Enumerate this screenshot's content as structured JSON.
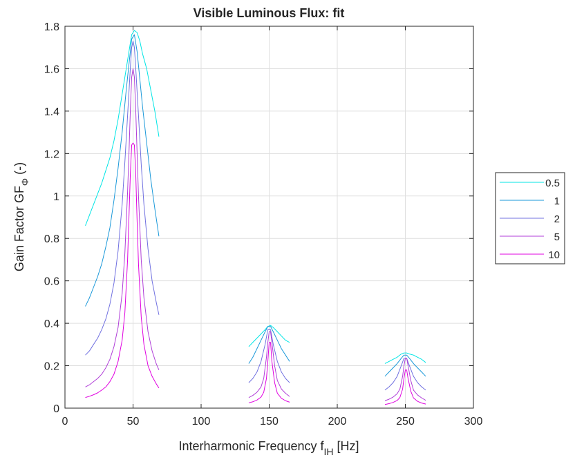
{
  "chart_data": {
    "type": "line",
    "title": "Visible Luminous Flux: fit",
    "xlabel": "Interharmonic Frequency f",
    "xlabel_sub": "IH",
    "xlabel_unit": " [Hz]",
    "ylabel": "Gain Factor GF",
    "ylabel_sub": "Φ",
    "ylabel_unit": " (-)",
    "xlim": [
      0,
      300
    ],
    "ylim": [
      0,
      1.8
    ],
    "xticks": [
      0,
      50,
      100,
      150,
      200,
      250,
      300
    ],
    "yticks": [
      0,
      0.2,
      0.4,
      0.6,
      0.8,
      1,
      1.2,
      1.4,
      1.6,
      1.8
    ],
    "xtick_labels": [
      "0",
      "50",
      "100",
      "150",
      "200",
      "250",
      "300"
    ],
    "ytick_labels": [
      "0",
      "0.2",
      "0.4",
      "0.6",
      "0.8",
      "1",
      "1.2",
      "1.4",
      "1.6",
      "1.8"
    ],
    "grid": true,
    "legend_position": "outside-right",
    "series": [
      {
        "name": "0.5",
        "color": "#00e5e5",
        "segments": [
          {
            "x": [
              15,
              18,
              21,
              24,
              27,
              30,
              33,
              36,
              39,
              42,
              45,
              47,
              49,
              51,
              53,
              55,
              57,
              60,
              63,
              66,
              69
            ],
            "y": [
              0.86,
              0.91,
              0.96,
              1.01,
              1.06,
              1.12,
              1.18,
              1.26,
              1.36,
              1.48,
              1.6,
              1.68,
              1.76,
              1.78,
              1.77,
              1.73,
              1.67,
              1.6,
              1.5,
              1.4,
              1.28
            ]
          },
          {
            "x": [
              135,
              138,
              141,
              144,
              147,
              149,
              151,
              153,
              156,
              159,
              162,
              165
            ],
            "y": [
              0.29,
              0.31,
              0.33,
              0.35,
              0.37,
              0.385,
              0.39,
              0.38,
              0.36,
              0.34,
              0.32,
              0.31
            ]
          },
          {
            "x": [
              235,
              238,
              241,
              244,
              247,
              249,
              251,
              253,
              256,
              259,
              262,
              265
            ],
            "y": [
              0.21,
              0.22,
              0.23,
              0.24,
              0.255,
              0.26,
              0.26,
              0.255,
              0.25,
              0.24,
              0.23,
              0.215
            ]
          }
        ]
      },
      {
        "name": "1",
        "color": "#1a98d9",
        "segments": [
          {
            "x": [
              15,
              18,
              21,
              24,
              27,
              30,
              33,
              36,
              39,
              42,
              45,
              47,
              49,
              51,
              53,
              55,
              57,
              60,
              63,
              66,
              69
            ],
            "y": [
              0.48,
              0.52,
              0.57,
              0.62,
              0.68,
              0.76,
              0.85,
              0.98,
              1.13,
              1.3,
              1.5,
              1.62,
              1.74,
              1.76,
              1.68,
              1.55,
              1.42,
              1.25,
              1.08,
              0.94,
              0.81
            ]
          },
          {
            "x": [
              135,
              138,
              141,
              144,
              147,
              149,
              151,
              153,
              156,
              159,
              162,
              165
            ],
            "y": [
              0.21,
              0.24,
              0.28,
              0.32,
              0.36,
              0.385,
              0.385,
              0.36,
              0.32,
              0.28,
              0.25,
              0.22
            ]
          },
          {
            "x": [
              235,
              238,
              241,
              244,
              247,
              249,
              251,
              253,
              256,
              259,
              262,
              265
            ],
            "y": [
              0.15,
              0.17,
              0.19,
              0.21,
              0.235,
              0.25,
              0.25,
              0.235,
              0.21,
              0.19,
              0.17,
              0.15
            ]
          }
        ]
      },
      {
        "name": "2",
        "color": "#7070e0",
        "segments": [
          {
            "x": [
              15,
              18,
              21,
              24,
              27,
              30,
              33,
              36,
              39,
              42,
              44,
              46,
              48,
              49,
              50,
              51,
              52,
              54,
              56,
              58,
              61,
              64,
              67,
              69
            ],
            "y": [
              0.25,
              0.27,
              0.3,
              0.33,
              0.37,
              0.42,
              0.49,
              0.59,
              0.74,
              0.96,
              1.16,
              1.38,
              1.6,
              1.7,
              1.73,
              1.7,
              1.6,
              1.38,
              1.15,
              0.96,
              0.75,
              0.6,
              0.5,
              0.44
            ]
          },
          {
            "x": [
              135,
              138,
              141,
              144,
              147,
              149,
              151,
              153,
              156,
              159,
              162,
              165
            ],
            "y": [
              0.12,
              0.14,
              0.17,
              0.22,
              0.3,
              0.37,
              0.37,
              0.3,
              0.22,
              0.17,
              0.14,
              0.12
            ]
          },
          {
            "x": [
              235,
              238,
              241,
              244,
              247,
              249,
              251,
              253,
              256,
              259,
              262,
              265
            ],
            "y": [
              0.085,
              0.1,
              0.12,
              0.15,
              0.2,
              0.235,
              0.235,
              0.2,
              0.15,
              0.12,
              0.1,
              0.085
            ]
          }
        ]
      },
      {
        "name": "5",
        "color": "#b03ed8",
        "segments": [
          {
            "x": [
              15,
              18,
              21,
              24,
              27,
              30,
              33,
              36,
              39,
              42,
              44,
              46,
              47,
              48,
              49,
              50,
              51,
              52,
              53,
              54,
              56,
              58,
              61,
              64,
              67,
              69
            ],
            "y": [
              0.1,
              0.11,
              0.125,
              0.14,
              0.16,
              0.19,
              0.23,
              0.29,
              0.38,
              0.54,
              0.73,
              1.02,
              1.2,
              1.4,
              1.56,
              1.6,
              1.56,
              1.4,
              1.2,
              1.0,
              0.7,
              0.52,
              0.36,
              0.27,
              0.21,
              0.18
            ]
          },
          {
            "x": [
              135,
              138,
              141,
              144,
              146,
              148,
              149,
              150,
              151,
              152,
              154,
              156,
              159,
              162,
              165
            ],
            "y": [
              0.05,
              0.06,
              0.075,
              0.1,
              0.14,
              0.24,
              0.31,
              0.36,
              0.36,
              0.31,
              0.2,
              0.13,
              0.09,
              0.07,
              0.055
            ]
          },
          {
            "x": [
              235,
              238,
              241,
              244,
              246,
              248,
              249,
              250,
              251,
              252,
              254,
              256,
              259,
              262,
              265
            ],
            "y": [
              0.035,
              0.042,
              0.052,
              0.068,
              0.09,
              0.15,
              0.2,
              0.235,
              0.235,
              0.2,
              0.13,
              0.085,
              0.062,
              0.048,
              0.037
            ]
          }
        ]
      },
      {
        "name": "10",
        "color": "#e000e0",
        "segments": [
          {
            "x": [
              15,
              18,
              21,
              24,
              27,
              30,
              33,
              36,
              39,
              42,
              44,
              46,
              47,
              48,
              49,
              50,
              51,
              52,
              53,
              54,
              56,
              58,
              61,
              64,
              67,
              69
            ],
            "y": [
              0.05,
              0.056,
              0.063,
              0.072,
              0.085,
              0.1,
              0.125,
              0.16,
              0.22,
              0.32,
              0.45,
              0.7,
              0.9,
              1.1,
              1.24,
              1.25,
              1.24,
              1.1,
              0.88,
              0.68,
              0.43,
              0.3,
              0.2,
              0.15,
              0.115,
              0.095
            ]
          },
          {
            "x": [
              135,
              138,
              141,
              144,
              146,
              148,
              149,
              150,
              151,
              152,
              154,
              156,
              159,
              162,
              165
            ],
            "y": [
              0.025,
              0.03,
              0.038,
              0.052,
              0.075,
              0.14,
              0.22,
              0.31,
              0.31,
              0.22,
              0.12,
              0.07,
              0.046,
              0.035,
              0.028
            ]
          },
          {
            "x": [
              235,
              238,
              241,
              244,
              246,
              248,
              249,
              250,
              251,
              252,
              254,
              256,
              259,
              262,
              265
            ],
            "y": [
              0.017,
              0.021,
              0.027,
              0.036,
              0.05,
              0.09,
              0.14,
              0.18,
              0.18,
              0.14,
              0.08,
              0.048,
              0.032,
              0.024,
              0.019
            ]
          }
        ]
      }
    ]
  }
}
